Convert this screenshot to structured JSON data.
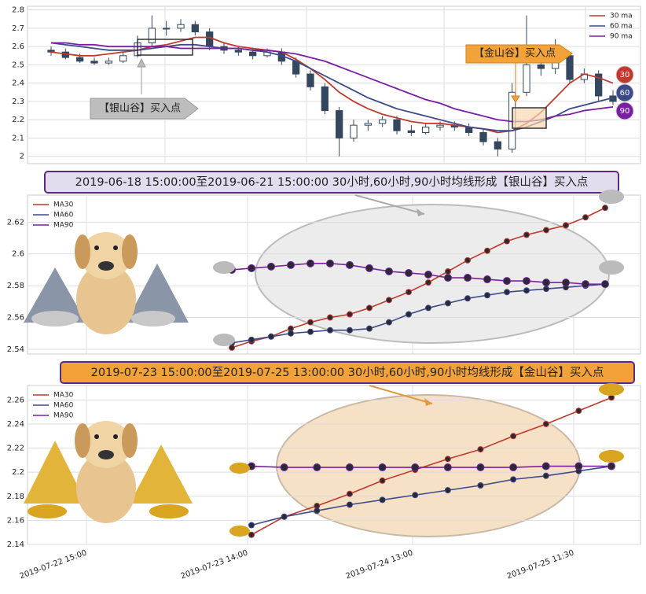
{
  "chart_data": [
    {
      "type": "candlestick",
      "categories": [
        null,
        null,
        null,
        null,
        null,
        null,
        null,
        null,
        null,
        null,
        null,
        null,
        null,
        null,
        null,
        null,
        null,
        null,
        null,
        null,
        null,
        null,
        null,
        null,
        null,
        null,
        null,
        null,
        null,
        null,
        null,
        null,
        null,
        null,
        null,
        null,
        null,
        null,
        null,
        null
      ],
      "open": [
        2.58,
        2.57,
        2.54,
        2.52,
        2.51,
        2.52,
        2.55,
        2.62,
        2.7,
        2.7,
        2.72,
        2.68,
        2.6,
        2.58,
        2.57,
        2.55,
        2.57,
        2.52,
        2.45,
        2.38,
        2.25,
        2.1,
        2.17,
        2.18,
        2.2,
        2.14,
        2.13,
        2.16,
        2.17,
        2.16,
        2.13,
        2.08,
        2.04,
        2.35,
        2.5,
        2.48,
        2.55,
        2.42,
        2.45,
        2.33
      ],
      "high": [
        2.6,
        2.59,
        2.56,
        2.54,
        2.54,
        2.57,
        2.66,
        2.77,
        2.74,
        2.75,
        2.74,
        2.7,
        2.62,
        2.6,
        2.59,
        2.59,
        2.59,
        2.54,
        2.47,
        2.4,
        2.27,
        2.2,
        2.2,
        2.22,
        2.22,
        2.17,
        2.18,
        2.19,
        2.19,
        2.18,
        2.15,
        2.1,
        2.4,
        2.77,
        2.58,
        2.64,
        2.57,
        2.48,
        2.47,
        2.36
      ],
      "low": [
        2.55,
        2.53,
        2.51,
        2.5,
        2.5,
        2.51,
        2.54,
        2.6,
        2.66,
        2.68,
        2.66,
        2.58,
        2.56,
        2.55,
        2.53,
        2.54,
        2.5,
        2.43,
        2.36,
        2.23,
        2.0,
        2.08,
        2.14,
        2.16,
        2.12,
        2.11,
        2.12,
        2.14,
        2.14,
        2.11,
        2.06,
        2.0,
        2.02,
        2.33,
        2.44,
        2.45,
        2.4,
        2.4,
        2.3,
        2.28
      ],
      "close": [
        2.57,
        2.54,
        2.52,
        2.51,
        2.52,
        2.55,
        2.62,
        2.7,
        2.7,
        2.72,
        2.68,
        2.6,
        2.58,
        2.57,
        2.55,
        2.57,
        2.52,
        2.45,
        2.38,
        2.25,
        2.1,
        2.17,
        2.18,
        2.2,
        2.14,
        2.13,
        2.16,
        2.17,
        2.16,
        2.13,
        2.08,
        2.04,
        2.35,
        2.5,
        2.48,
        2.55,
        2.42,
        2.45,
        2.33,
        2.3
      ],
      "series": [
        {
          "name": "30 ma",
          "color": "#c0392b",
          "values": [
            2.57,
            2.56,
            2.55,
            2.55,
            2.56,
            2.57,
            2.58,
            2.6,
            2.61,
            2.63,
            2.65,
            2.65,
            2.62,
            2.6,
            2.59,
            2.58,
            2.57,
            2.53,
            2.48,
            2.42,
            2.35,
            2.3,
            2.26,
            2.23,
            2.21,
            2.19,
            2.18,
            2.18,
            2.17,
            2.16,
            2.15,
            2.13,
            2.14,
            2.18,
            2.24,
            2.32,
            2.4,
            2.45,
            2.43,
            2.4
          ]
        },
        {
          "name": "60 ma",
          "color": "#3d4a8a",
          "values": [
            2.62,
            2.61,
            2.6,
            2.59,
            2.58,
            2.58,
            2.58,
            2.59,
            2.6,
            2.61,
            2.61,
            2.6,
            2.59,
            2.59,
            2.58,
            2.57,
            2.55,
            2.52,
            2.48,
            2.44,
            2.4,
            2.36,
            2.32,
            2.29,
            2.26,
            2.24,
            2.22,
            2.2,
            2.18,
            2.16,
            2.15,
            2.14,
            2.14,
            2.16,
            2.19,
            2.22,
            2.26,
            2.28,
            2.3,
            2.32
          ]
        },
        {
          "name": "90 ma",
          "color": "#7a1fa2",
          "values": [
            2.62,
            2.62,
            2.61,
            2.61,
            2.6,
            2.6,
            2.6,
            2.6,
            2.6,
            2.59,
            2.59,
            2.59,
            2.59,
            2.59,
            2.58,
            2.58,
            2.57,
            2.56,
            2.54,
            2.52,
            2.49,
            2.46,
            2.43,
            2.4,
            2.37,
            2.34,
            2.31,
            2.29,
            2.26,
            2.24,
            2.22,
            2.2,
            2.19,
            2.19,
            2.2,
            2.22,
            2.23,
            2.25,
            2.26,
            2.27
          ]
        }
      ],
      "ylim": [
        1.96,
        2.82
      ],
      "yticks": [
        2.0,
        2.1,
        2.2,
        2.3,
        2.4,
        2.5,
        2.6,
        2.7,
        2.8
      ],
      "grid": true,
      "annotations": [
        "【银山谷】买入点",
        "【金山谷】买入点"
      ],
      "badges": [
        "30",
        "60",
        "90"
      ]
    },
    {
      "type": "line",
      "title": "2019-06-18 15:00:00至2019-06-21 15:00:00 30小时,60小时,90小时均线形成【银山谷】买入点",
      "categories": [
        null,
        null,
        null,
        null,
        null,
        null,
        null,
        null,
        null,
        null,
        null,
        null,
        null,
        null,
        null,
        null,
        null,
        null,
        null,
        null
      ],
      "series": [
        {
          "name": "MA30",
          "color": "#c0392b",
          "values": [
            2.541,
            2.545,
            2.548,
            2.553,
            2.557,
            2.56,
            2.562,
            2.566,
            2.571,
            2.576,
            2.582,
            2.589,
            2.596,
            2.602,
            2.608,
            2.612,
            2.615,
            2.618,
            2.623,
            2.629
          ]
        },
        {
          "name": "MA60",
          "color": "#3d4a8a",
          "values": [
            2.544,
            2.546,
            2.548,
            2.55,
            2.551,
            2.552,
            2.552,
            2.553,
            2.557,
            2.562,
            2.566,
            2.569,
            2.572,
            2.574,
            2.576,
            2.577,
            2.578,
            2.579,
            2.58,
            2.581
          ]
        },
        {
          "name": "MA90",
          "color": "#7a1fa2",
          "values": [
            2.59,
            2.591,
            2.592,
            2.593,
            2.594,
            2.594,
            2.593,
            2.591,
            2.589,
            2.588,
            2.587,
            2.585,
            2.585,
            2.584,
            2.583,
            2.583,
            2.582,
            2.582,
            2.581,
            2.581
          ]
        }
      ],
      "ylim": [
        2.537,
        2.637
      ],
      "yticks": [
        2.54,
        2.56,
        2.58,
        2.6,
        2.62
      ],
      "grid": true
    },
    {
      "type": "line",
      "title": "2019-07-23 15:00:00至2019-07-25 13:00:00 30小时,60小时,90小时均线形成【金山谷】买入点",
      "categories": [
        null,
        null,
        null,
        null,
        null,
        null,
        null,
        null,
        null,
        null,
        null,
        null
      ],
      "series": [
        {
          "name": "MA30",
          "color": "#c0392b",
          "values": [
            2.148,
            2.163,
            2.172,
            2.182,
            2.193,
            2.202,
            2.211,
            2.219,
            2.23,
            2.24,
            2.251,
            2.262
          ]
        },
        {
          "name": "MA60",
          "color": "#3d4a8a",
          "values": [
            2.156,
            2.163,
            2.168,
            2.173,
            2.177,
            2.181,
            2.185,
            2.189,
            2.194,
            2.197,
            2.201,
            2.205
          ]
        },
        {
          "name": "MA90",
          "color": "#7a1fa2",
          "values": [
            2.205,
            2.204,
            2.204,
            2.204,
            2.204,
            2.204,
            2.204,
            2.204,
            2.204,
            2.205,
            2.205,
            2.205
          ]
        }
      ],
      "ylim": [
        2.14,
        2.272
      ],
      "yticks": [
        2.14,
        2.16,
        2.18,
        2.2,
        2.22,
        2.24,
        2.26
      ],
      "grid": true,
      "xtick_labels": [
        "2019-07-22 15:00",
        "2019-07-23 14:00",
        "2019-07-24 13:00",
        "2019-07-25 11:30"
      ]
    }
  ]
}
